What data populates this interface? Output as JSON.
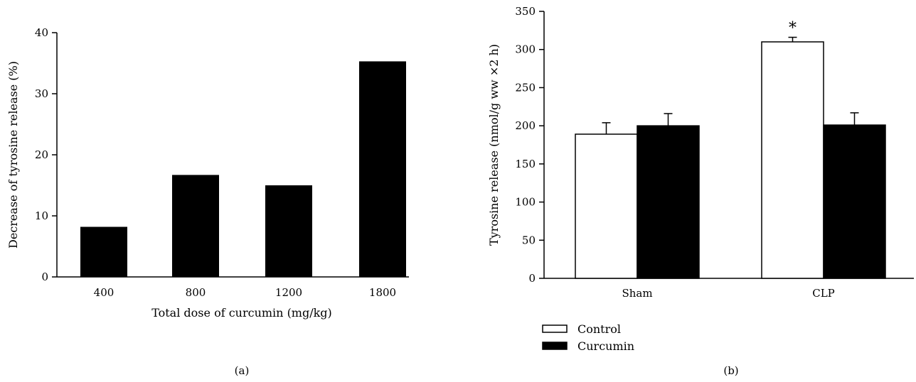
{
  "chart_data": [
    {
      "type": "bar",
      "panel_label": "(a)",
      "xlabel": "Total dose of curcumin (mg/kg)",
      "ylabel": "Decrease of tyrosine release (%)",
      "categories": [
        "400",
        "800",
        "1200",
        "1800"
      ],
      "values": [
        8.2,
        16.7,
        15.0,
        35.3
      ],
      "ylim": [
        0,
        40
      ],
      "yticks": [
        0,
        10,
        20,
        30,
        40
      ],
      "bar_color": "#000000",
      "grid": false
    },
    {
      "type": "bar",
      "panel_label": "(b)",
      "xlabel": "",
      "ylabel": "Tyrosine release (nmol/g ww ×2 h)",
      "categories": [
        "Sham",
        "CLP"
      ],
      "series": [
        {
          "name": "Control",
          "values": [
            189,
            310
          ],
          "errors": [
            15,
            6
          ],
          "fill": "#ffffff"
        },
        {
          "name": "Curcumin",
          "values": [
            200,
            201
          ],
          "errors": [
            16,
            16
          ],
          "fill": "#000000"
        }
      ],
      "ylim": [
        0,
        350
      ],
      "yticks": [
        0,
        50,
        100,
        150,
        200,
        250,
        300,
        350
      ],
      "annotation": {
        "text": "*",
        "category": "CLP",
        "series": "Control"
      },
      "legend_position": "below-left",
      "grid": false
    }
  ]
}
